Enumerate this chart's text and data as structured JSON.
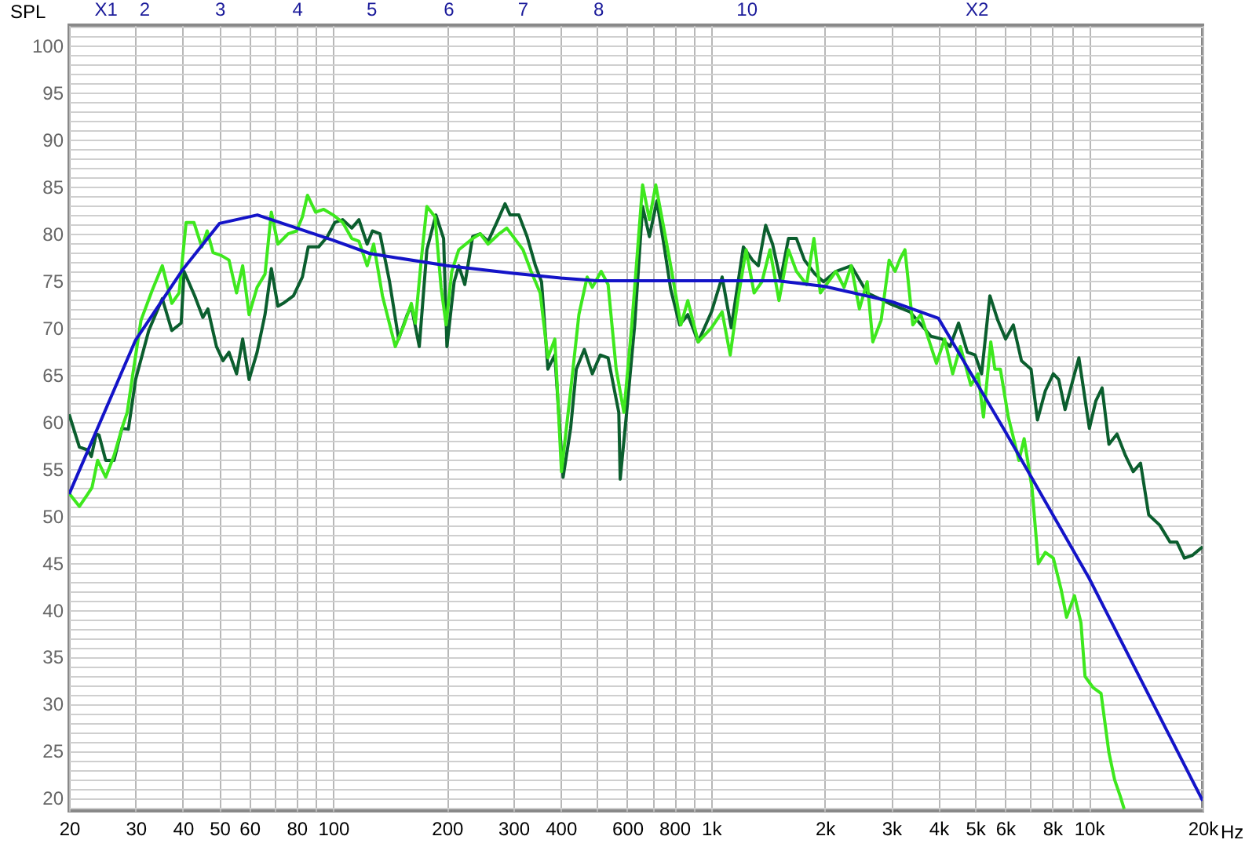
{
  "chart_data": {
    "type": "line",
    "ylabel": "SPL",
    "log": "x",
    "grid": true,
    "legend": false,
    "line_style": "solid",
    "marker": "none",
    "xlim": [
      20,
      20000
    ],
    "ylim": [
      18.6,
      102.2
    ],
    "xticks": [
      20,
      30,
      40,
      50,
      60,
      {
        "value": 70,
        "label": null
      },
      80,
      {
        "value": 90,
        "label": null
      },
      100,
      200,
      300,
      400,
      {
        "value": 500,
        "label": null
      },
      600,
      {
        "value": 700,
        "label": null
      },
      800,
      {
        "value": 900,
        "label": null
      },
      {
        "value": 1000,
        "label": "1k"
      },
      {
        "value": 2000,
        "label": "2k"
      },
      {
        "value": 3000,
        "label": "3k"
      },
      {
        "value": 4000,
        "label": "4k"
      },
      {
        "value": 5000,
        "label": "5k"
      },
      {
        "value": 6000,
        "label": "6k"
      },
      {
        "value": 7000,
        "label": null
      },
      {
        "value": 8000,
        "label": "8k"
      },
      {
        "value": 9000,
        "label": null
      },
      {
        "value": 10000,
        "label": "10k"
      },
      {
        "value": 20000,
        "label": "20k"
      }
    ],
    "xlabel": "Hz",
    "yticks": [
      {
        "value": 19,
        "label": null
      },
      20,
      {
        "value": 21,
        "label": null
      },
      {
        "value": 22,
        "label": null
      },
      {
        "value": 23,
        "label": null
      },
      {
        "value": 24,
        "label": null
      },
      25,
      {
        "value": 26,
        "label": null
      },
      {
        "value": 27,
        "label": null
      },
      {
        "value": 28,
        "label": null
      },
      {
        "value": 29,
        "label": null
      },
      30,
      {
        "value": 31,
        "label": null
      },
      {
        "value": 32,
        "label": null
      },
      {
        "value": 33,
        "label": null
      },
      {
        "value": 34,
        "label": null
      },
      35,
      {
        "value": 36,
        "label": null
      },
      {
        "value": 37,
        "label": null
      },
      {
        "value": 38,
        "label": null
      },
      {
        "value": 39,
        "label": null
      },
      40,
      {
        "value": 41,
        "label": null
      },
      {
        "value": 42,
        "label": null
      },
      {
        "value": 43,
        "label": null
      },
      {
        "value": 44,
        "label": null
      },
      45,
      {
        "value": 46,
        "label": null
      },
      {
        "value": 47,
        "label": null
      },
      {
        "value": 48,
        "label": null
      },
      {
        "value": 49,
        "label": null
      },
      50,
      {
        "value": 51,
        "label": null
      },
      {
        "value": 52,
        "label": null
      },
      {
        "value": 53,
        "label": null
      },
      {
        "value": 54,
        "label": null
      },
      55,
      {
        "value": 56,
        "label": null
      },
      {
        "value": 57,
        "label": null
      },
      {
        "value": 58,
        "label": null
      },
      {
        "value": 59,
        "label": null
      },
      60,
      {
        "value": 61,
        "label": null
      },
      {
        "value": 62,
        "label": null
      },
      {
        "value": 63,
        "label": null
      },
      {
        "value": 64,
        "label": null
      },
      65,
      {
        "value": 66,
        "label": null
      },
      {
        "value": 67,
        "label": null
      },
      {
        "value": 68,
        "label": null
      },
      {
        "value": 69,
        "label": null
      },
      70,
      {
        "value": 71,
        "label": null
      },
      {
        "value": 72,
        "label": null
      },
      {
        "value": 73,
        "label": null
      },
      {
        "value": 74,
        "label": null
      },
      75,
      {
        "value": 76,
        "label": null
      },
      {
        "value": 77,
        "label": null
      },
      {
        "value": 78,
        "label": null
      },
      {
        "value": 79,
        "label": null
      },
      80,
      {
        "value": 81,
        "label": null
      },
      {
        "value": 82,
        "label": null
      },
      {
        "value": 83,
        "label": null
      },
      {
        "value": 84,
        "label": null
      },
      85,
      {
        "value": 86,
        "label": null
      },
      {
        "value": 87,
        "label": null
      },
      {
        "value": 88,
        "label": null
      },
      {
        "value": 89,
        "label": null
      },
      90,
      {
        "value": 91,
        "label": null
      },
      {
        "value": 92,
        "label": null
      },
      {
        "value": 93,
        "label": null
      },
      {
        "value": 94,
        "label": null
      },
      95,
      {
        "value": 96,
        "label": null
      },
      {
        "value": 97,
        "label": null
      },
      {
        "value": 98,
        "label": null
      },
      {
        "value": 99,
        "label": null
      },
      100,
      {
        "value": 101,
        "label": null
      },
      {
        "value": 102,
        "label": null
      }
    ],
    "annotations": [
      "X1",
      "2",
      "3",
      "4",
      "5",
      "6",
      "7",
      "8",
      "10",
      "X2"
    ],
    "series": [
      {
        "color": "#0b5e2e",
        "x": [
          20,
          21.3,
          22.4,
          22.9,
          23.6,
          24,
          25,
          26.3,
          27.6,
          28.7,
          30,
          32.5,
          35.3,
          37.4,
          39.6,
          40.3,
          43,
          45.2,
          46.6,
          49.1,
          51.1,
          53,
          55.5,
          57.6,
          59.9,
          62.9,
          66,
          68.6,
          71.4,
          73.7,
          78.5,
          82.9,
          85.9,
          91.5,
          96.5,
          101,
          106,
          112,
          117,
          123,
          127,
          133,
          141,
          149,
          157,
          161,
          169,
          177,
          187,
          196,
          200,
          209,
          215,
          223,
          234,
          245,
          257,
          271,
          285,
          294,
          310,
          326,
          343,
          356,
          370,
          386,
          406,
          425,
          440,
          462,
          485,
          509,
          534,
          570,
          575,
          598,
          628,
          659,
          687,
          719,
          750,
          782,
          826,
          868,
          925,
          1003,
          1070,
          1131,
          1218,
          1287,
          1334,
          1395,
          1455,
          1527,
          1603,
          1683,
          1767,
          1885,
          1985,
          2140,
          2350,
          2590,
          2960,
          3360,
          3820,
          4090,
          4290,
          4520,
          4770,
          5000,
          5200,
          5470,
          5740,
          6020,
          6310,
          6630,
          7030,
          7310,
          7670,
          8050,
          8320,
          8650,
          9080,
          9410,
          10030,
          10430,
          10840,
          11300,
          11870,
          12500,
          13100,
          13700,
          14400,
          15400,
          16400,
          17100,
          17900,
          18800,
          20000
        ],
        "values": [
          60.8,
          57.3,
          57,
          56.3,
          58.7,
          58.6,
          55.9,
          55.9,
          59.3,
          59.2,
          64.5,
          69.7,
          73.1,
          69.7,
          70.5,
          76,
          73.4,
          71.1,
          72,
          68,
          66.5,
          67.4,
          65.1,
          68.8,
          64.5,
          67.4,
          71.4,
          76.3,
          72.3,
          72.6,
          73.4,
          75.4,
          78.6,
          78.6,
          79.7,
          81.2,
          81.5,
          80.6,
          81.5,
          78.9,
          80.3,
          80,
          74.9,
          68.8,
          71.4,
          72.3,
          68,
          78.3,
          82,
          79.5,
          68,
          74.9,
          76.6,
          74.6,
          79.7,
          80,
          79.2,
          81.2,
          83.2,
          82,
          82,
          79.7,
          76.6,
          74.9,
          65.6,
          67.1,
          54.1,
          59.3,
          65.6,
          67.7,
          65.1,
          67.1,
          66.8,
          61,
          53.9,
          61,
          70.3,
          82.9,
          79.7,
          83.5,
          78.9,
          74.1,
          70.3,
          71.4,
          68.5,
          71.7,
          75.4,
          70,
          78.6,
          77.2,
          76.6,
          80.9,
          78.9,
          75.1,
          79.5,
          79.5,
          77.2,
          75.7,
          74.9,
          76,
          76.6,
          73.7,
          72.6,
          71.7,
          69.1,
          68.8,
          68,
          70.5,
          67.4,
          67.1,
          65.1,
          73.4,
          70.8,
          68.8,
          70.3,
          66.5,
          65.6,
          60.2,
          63.3,
          65.1,
          64.5,
          61.3,
          64.5,
          66.8,
          59.3,
          62.2,
          63.6,
          57.6,
          58.7,
          56.4,
          54.7,
          55.6,
          50.1,
          49,
          47.2,
          47.2,
          45.5,
          45.8,
          46.7
        ]
      },
      {
        "color": "#3ee81e",
        "x": [
          20,
          21.3,
          22.4,
          23,
          23.8,
          25,
          26.3,
          27.6,
          28.5,
          29.5,
          31,
          33.2,
          35.3,
          37.4,
          39.1,
          40.8,
          42.8,
          44.9,
          46.4,
          48.1,
          50.5,
          53,
          55.5,
          57.6,
          59.9,
          62.9,
          66,
          68.6,
          71.4,
          76,
          80,
          82.9,
          85.5,
          89.8,
          94.4,
          100,
          106,
          112,
          117,
          123,
          128,
          135,
          146,
          154,
          161,
          165,
          171,
          177,
          186,
          193,
          199,
          206,
          215,
          234,
          245,
          257,
          275,
          288,
          302,
          318,
          334,
          353,
          370,
          386,
          402,
          425,
          447,
          470,
          485,
          512,
          534,
          561,
          588,
          617,
          659,
          687,
          714,
          750,
          787,
          832,
          868,
          925,
          1003,
          1070,
          1124,
          1179,
          1238,
          1300,
          1364,
          1432,
          1513,
          1603,
          1683,
          1790,
          1872,
          1947,
          2140,
          2250,
          2350,
          2470,
          2590,
          2680,
          2820,
          2960,
          3070,
          3170,
          3260,
          3420,
          3590,
          3820,
          3950,
          4150,
          4360,
          4570,
          4870,
          5090,
          5260,
          5500,
          5640,
          5830,
          6120,
          6530,
          6740,
          7070,
          7350,
          7670,
          8050,
          8450,
          8730,
          9160,
          9530,
          9770,
          10270,
          10770,
          11300,
          11700,
          12100,
          12400
        ],
        "values": [
          52.4,
          51,
          52.3,
          53,
          55.9,
          54.1,
          56.4,
          59.3,
          61,
          65.1,
          70.8,
          74,
          76.6,
          72.6,
          73.7,
          81.2,
          81.2,
          78.6,
          80.3,
          78,
          77.7,
          77.2,
          73.7,
          76.6,
          71.4,
          74.3,
          75.7,
          82.3,
          78.9,
          80,
          80.3,
          81.8,
          84.1,
          82.3,
          82.6,
          82,
          81.2,
          79.5,
          79.2,
          76.6,
          78.9,
          73.4,
          68,
          70.3,
          72.6,
          70.5,
          77.2,
          82.9,
          81.8,
          74.3,
          70.3,
          76,
          78.3,
          79.5,
          80,
          78.9,
          80,
          80.6,
          79.5,
          78.3,
          76,
          73.7,
          66.8,
          68.8,
          54.7,
          63.3,
          71.4,
          75.4,
          74.3,
          76,
          74.6,
          65.6,
          61,
          70.3,
          85.2,
          81.5,
          85.2,
          80.6,
          76,
          70.3,
          72.9,
          68.5,
          70,
          71.7,
          67.1,
          73.1,
          78.3,
          73.7,
          74.9,
          78.3,
          72.9,
          78.3,
          76,
          74.6,
          79.5,
          73.7,
          76,
          74.3,
          76.6,
          72,
          74.9,
          68.5,
          70.8,
          77.2,
          76,
          77.4,
          78.3,
          70.3,
          71.4,
          68,
          66.2,
          68.8,
          65.1,
          68,
          63.9,
          65.1,
          60.5,
          68.5,
          65.6,
          65.6,
          60.5,
          55.9,
          58.2,
          53,
          44.9,
          46.1,
          45.5,
          42.1,
          39.2,
          41.5,
          38.6,
          32.9,
          31.7,
          31.1,
          24.8,
          21.9,
          20.2,
          18.8
        ]
      },
      {
        "color": "#1414c8",
        "x": [
          20,
          30,
          40,
          50,
          63,
          100,
          125,
          200,
          300,
          400,
          500,
          1000,
          1500,
          2000,
          3000,
          4000,
          6000,
          10000,
          20000
        ],
        "values": [
          52.3,
          68.7,
          76.2,
          81.1,
          82,
          79.3,
          77.9,
          76.6,
          75.8,
          75.3,
          75,
          75,
          75,
          74.4,
          72.8,
          71,
          59,
          43.4,
          19.7
        ]
      }
    ]
  }
}
